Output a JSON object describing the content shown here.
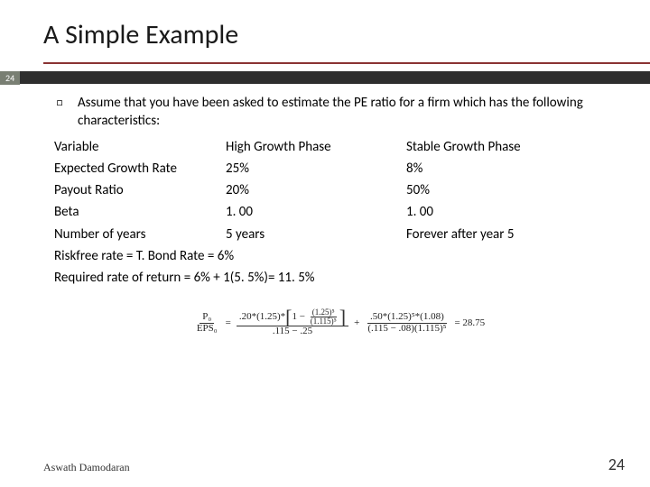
{
  "slide": {
    "title": "A Simple Example",
    "badge": "24",
    "lead": "Assume that you have been asked to estimate the PE ratio for a firm which has the following characteristics:",
    "table": {
      "header": {
        "v": "Variable",
        "h": "High Growth Phase",
        "s": "Stable Growth Phase"
      },
      "rows": [
        {
          "v": "Expected Growth Rate",
          "h": "25%",
          "s": "8%"
        },
        {
          "v": "Payout Ratio",
          "h": "20%",
          "s": "50%"
        },
        {
          "v": "Beta",
          "h": "1. 00",
          "s": "1. 00"
        },
        {
          "v": "Number of years",
          "h": "5 years",
          "s": "Forever after year 5"
        }
      ]
    },
    "notes": [
      "Riskfree rate = T. Bond Rate = 6%",
      "Required rate of return = 6% + 1(5. 5%)= 11. 5%"
    ],
    "formula": {
      "lhs_num": "P₀",
      "lhs_den": "EPS₀",
      "eq": "=",
      "t1_lead": ".20*(1.25)*",
      "t1_inner_num": "(1.25)⁵",
      "t1_inner_den": "(1.115)⁵",
      "t1_one_minus": "1 −",
      "t1_den": ".115 − .25",
      "plus": "+",
      "t2_num": ".50*(1.25)⁵*(1.08)",
      "t2_den": "(.115 − .08)(1.115)⁵",
      "result": "= 28.75"
    },
    "author": "Aswath Damodaran",
    "page": "24"
  },
  "style": {
    "accent": "#8a3333",
    "badgeBg": "#797f73",
    "barBg": "#2e2e2e"
  }
}
